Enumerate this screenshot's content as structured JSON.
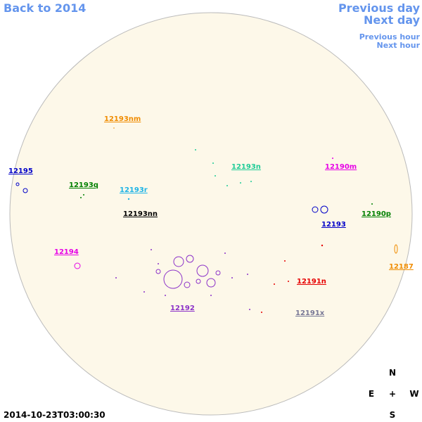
{
  "navigation": {
    "back": "Back to 2014",
    "previous_day": "Previous day",
    "next_day": "Next day",
    "previous_hour": "Previous hour",
    "next_hour": "Next hour"
  },
  "regions": [
    {
      "label": "12193nm",
      "color": "#f08c00"
    },
    {
      "label": "12195",
      "color": "#0000c8"
    },
    {
      "label": "12193q",
      "color": "#008000"
    },
    {
      "label": "12193r",
      "color": "#1eb4e6"
    },
    {
      "label": "12193nn",
      "color": "#000000"
    },
    {
      "label": "12193n",
      "color": "#1ecc96"
    },
    {
      "label": "12190m",
      "color": "#e600e6"
    },
    {
      "label": "12193",
      "color": "#0000c8"
    },
    {
      "label": "12190p",
      "color": "#008000"
    },
    {
      "label": "12194",
      "color": "#e600e6"
    },
    {
      "label": "12187",
      "color": "#f08c00"
    },
    {
      "label": "12191n",
      "color": "#e60000"
    },
    {
      "label": "12192",
      "color": "#8c32c8"
    },
    {
      "label": "12191x",
      "color": "#787896"
    }
  ],
  "compass": {
    "north": "N",
    "east": "E",
    "center": "+",
    "west": "W",
    "south": "S"
  },
  "timestamp": "2014-10-23T03:00:30"
}
